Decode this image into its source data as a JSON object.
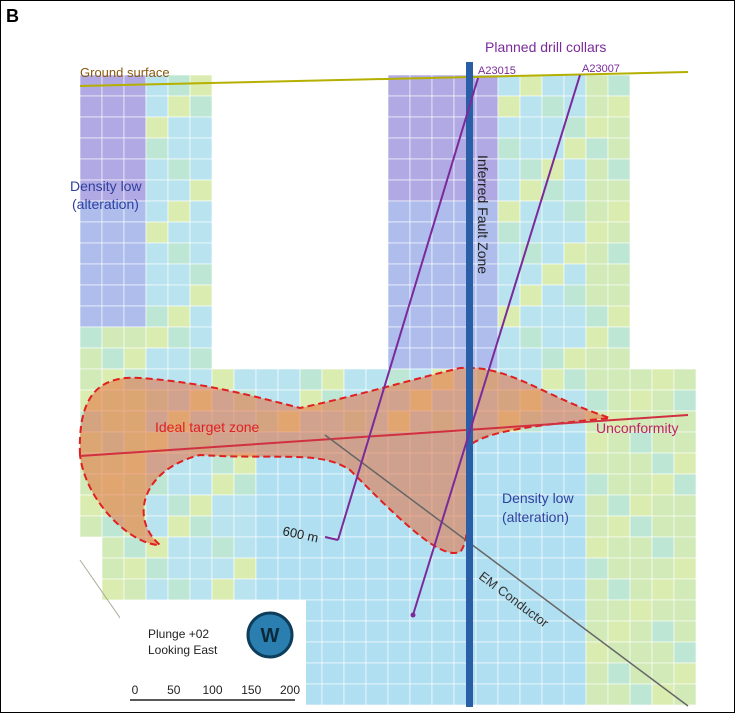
{
  "panel_label": "B",
  "labels": {
    "planned_drill_collars": "Planned drill collars",
    "collar_1": "A23015",
    "collar_2": "A23007",
    "ground_surface": "Ground surface",
    "density_low_left": [
      "Density low",
      "(alteration)"
    ],
    "fault_zone": "Inferred Fault Zone",
    "target_zone": "Ideal target zone",
    "unconformity": "Unconformity",
    "density_low_right": [
      "Density low",
      "(alteration)"
    ],
    "hole_depth": "600 m",
    "em_conductor": "EM Conductor"
  },
  "legend": {
    "plunge": "Plunge +02",
    "looking": "Looking East",
    "compass": "W"
  },
  "scale_bar": {
    "ticks": [
      "0",
      "50",
      "100",
      "150",
      "200"
    ]
  }
}
